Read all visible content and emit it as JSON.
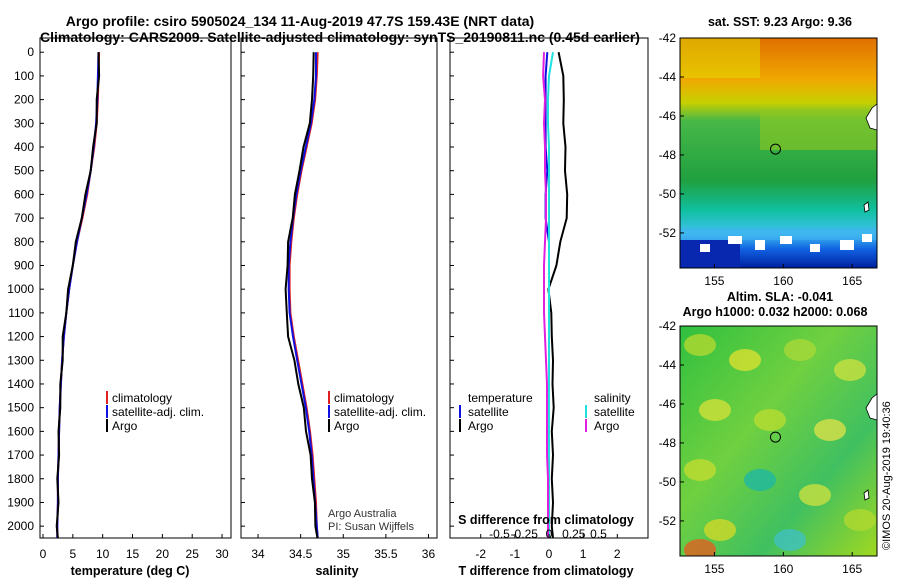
{
  "title": "Argo profile: csiro 5905024_134 11-Aug-2019 47.7S 159.43E (NRT data)",
  "subtitle": "Climatology: CARS2009. Satellite-adjusted climatology: synTS_20190811.nc (0.45d earlier)",
  "colors": {
    "climatology": "#e02020",
    "satellite": "#1010e0",
    "argo": "#000000",
    "s_satellite": "#20e0e0",
    "s_argo": "#e020e0"
  },
  "panels": {
    "temperature": {
      "xlabel": "temperature (deg C)",
      "legend": [
        "climatology",
        "satellite-adj. clim.",
        "Argo"
      ]
    },
    "salinity": {
      "xlabel": "salinity",
      "legend": [
        "climatology",
        "satellite-adj. clim.",
        "Argo"
      ]
    },
    "difference": {
      "xlabel": "T difference from climatology",
      "s_axis_label": "S difference from climatology",
      "legend_left": [
        "temperature",
        "satellite",
        "Argo"
      ],
      "legend_right": [
        "salinity",
        "satellite",
        "Argo"
      ]
    }
  },
  "credits": [
    "Argo Australia",
    "PI: Susan Wijffels"
  ],
  "maps": {
    "sst": {
      "title": "sat. SST: 9.23 Argo: 9.36",
      "xticks": [
        155,
        160,
        165
      ],
      "yticks": [
        -42,
        -44,
        -46,
        -48,
        -50,
        -52
      ],
      "xlim": [
        152.5,
        166.8
      ],
      "ylim": [
        -53.8,
        -42.0
      ],
      "profile_location": [
        159.43,
        -47.7
      ]
    },
    "sla": {
      "title_1": "Altim. SLA: -0.041",
      "title_2": "Argo h1000: 0.032 h2000: 0.068",
      "xticks": [
        155,
        160,
        165
      ],
      "yticks": [
        -42,
        -44,
        -46,
        -48,
        -50,
        -52
      ],
      "xlim": [
        152.5,
        166.8
      ],
      "ylim": [
        -53.8,
        -42.0
      ],
      "profile_location": [
        159.43,
        -47.7
      ]
    }
  },
  "imos_credit": "©IMOS 20-Aug-2019 19:40:36",
  "chart_data": [
    {
      "type": "line",
      "title": "",
      "xlabel": "temperature (deg C)",
      "ylabel": "",
      "xlim": [
        -0.5,
        31.5
      ],
      "ylim": [
        2050,
        -60
      ],
      "xticks": [
        0,
        5,
        10,
        15,
        20,
        25,
        30
      ],
      "yticks": [
        0,
        100,
        200,
        300,
        400,
        500,
        600,
        700,
        800,
        900,
        1000,
        1100,
        1200,
        1300,
        1400,
        1500,
        1600,
        1700,
        1800,
        1900,
        2000
      ],
      "depth": [
        0,
        100,
        200,
        300,
        400,
        500,
        600,
        700,
        800,
        900,
        1000,
        1100,
        1200,
        1300,
        1400,
        1500,
        1600,
        1700,
        1800,
        1900,
        2000,
        2050
      ],
      "series": [
        {
          "name": "climatology",
          "values": [
            9.4,
            9.3,
            9.2,
            9.0,
            8.6,
            8.0,
            7.4,
            6.6,
            5.7,
            5.0,
            4.4,
            3.9,
            3.5,
            3.2,
            3.0,
            2.8,
            2.7,
            2.6,
            2.5,
            2.5,
            2.4,
            2.4
          ]
        },
        {
          "name": "satellite-adj. clim.",
          "values": [
            9.3,
            9.2,
            9.1,
            8.9,
            8.5,
            8.0,
            7.3,
            6.5,
            5.7,
            5.0,
            4.4,
            3.9,
            3.5,
            3.2,
            3.0,
            2.8,
            2.7,
            2.6,
            2.5,
            2.5,
            2.4,
            2.4
          ]
        },
        {
          "name": "Argo",
          "values": [
            9.4,
            9.3,
            9.1,
            8.9,
            8.5,
            7.9,
            7.2,
            6.4,
            5.6,
            4.9,
            4.3,
            3.8,
            3.4,
            3.2,
            3.0,
            2.8,
            2.7,
            2.6,
            2.5,
            2.5,
            2.4,
            2.4
          ]
        }
      ]
    },
    {
      "type": "line",
      "title": "",
      "xlabel": "salinity",
      "ylabel": "",
      "xlim": [
        33.8,
        36.1
      ],
      "ylim": [
        2050,
        -60
      ],
      "xticks": [
        34,
        34.5,
        35,
        35.5,
        36
      ],
      "xtick_labels": [
        "34",
        "34.5",
        "35",
        "35.5",
        "36"
      ],
      "depth": [
        0,
        100,
        200,
        300,
        400,
        500,
        600,
        700,
        800,
        900,
        1000,
        1100,
        1200,
        1300,
        1400,
        1500,
        1600,
        1700,
        1800,
        1900,
        2000,
        2050
      ],
      "series": [
        {
          "name": "climatology",
          "values": [
            34.7,
            34.69,
            34.67,
            34.63,
            34.57,
            34.51,
            34.46,
            34.42,
            34.39,
            34.37,
            34.37,
            34.38,
            34.42,
            34.47,
            34.52,
            34.57,
            34.61,
            34.64,
            34.66,
            34.68,
            34.69,
            34.7
          ]
        },
        {
          "name": "satellite-adj. clim.",
          "values": [
            34.68,
            34.68,
            34.66,
            34.62,
            34.56,
            34.5,
            34.45,
            34.41,
            34.38,
            34.36,
            34.36,
            34.37,
            34.41,
            34.46,
            34.51,
            34.56,
            34.6,
            34.63,
            34.65,
            34.67,
            34.69,
            34.7
          ]
        },
        {
          "name": "Argo",
          "values": [
            34.66,
            34.64,
            34.64,
            34.6,
            34.54,
            34.48,
            34.44,
            34.4,
            34.36,
            34.34,
            34.33,
            34.33,
            34.36,
            34.42,
            34.48,
            34.53,
            34.57,
            34.61,
            34.64,
            34.66,
            34.68,
            34.69
          ]
        }
      ]
    },
    {
      "type": "line",
      "title": "",
      "xlabel": "T difference from climatology",
      "ylabel": "",
      "xlim": [
        -2.9,
        2.9
      ],
      "ylim": [
        2050,
        -60
      ],
      "xticks": [
        -2,
        -1,
        0,
        1,
        2
      ],
      "s_axis": {
        "label": "S difference from climatology",
        "ticks": [
          -0.5,
          -0.25,
          0,
          0.25,
          0.5
        ],
        "tick_labels": [
          "-0.5",
          "-0.25",
          "0",
          "0.25",
          "0.5"
        ],
        "lim": [
          -1.0,
          1.0
        ]
      },
      "depth": [
        0,
        100,
        200,
        300,
        400,
        500,
        600,
        700,
        800,
        900,
        1000,
        1100,
        1200,
        1300,
        1400,
        1500,
        1600,
        1700,
        1800,
        1900,
        2000,
        2050
      ],
      "series": [
        {
          "name": "temperature satellite",
          "axis": "T",
          "values": [
            -0.05,
            -0.1,
            -0.1,
            -0.1,
            -0.1,
            -0.05,
            -0.1,
            -0.1,
            0.0,
            0.0,
            0.0,
            0.0,
            0.0,
            0.0,
            0.0,
            0.0,
            0.0,
            0.0,
            0.0,
            0.0,
            0.0,
            0.0
          ]
        },
        {
          "name": "temperature Argo",
          "axis": "T",
          "values": [
            0.3,
            0.4,
            0.45,
            0.4,
            0.5,
            0.45,
            0.55,
            0.5,
            0.35,
            0.2,
            0.0,
            0.05,
            0.1,
            0.1,
            0.12,
            0.12,
            0.1,
            0.1,
            0.1,
            0.1,
            0.1,
            0.1
          ]
        },
        {
          "name": "salinity satellite",
          "axis": "S",
          "values": [
            0.04,
            0.0,
            -0.01,
            -0.01,
            0.0,
            0.0,
            0.0,
            0.0,
            0.0,
            0.0,
            0.0,
            0.0,
            0.0,
            0.0,
            0.0,
            0.0,
            0.0,
            0.0,
            0.0,
            0.0,
            0.0,
            0.0
          ]
        },
        {
          "name": "salinity Argo",
          "axis": "S",
          "values": [
            -0.05,
            -0.06,
            -0.04,
            -0.05,
            -0.04,
            -0.04,
            -0.03,
            -0.03,
            -0.04,
            -0.05,
            -0.05,
            -0.05,
            -0.04,
            -0.03,
            -0.02,
            -0.02,
            -0.02,
            -0.02,
            -0.01,
            -0.01,
            -0.01,
            -0.01
          ]
        }
      ]
    }
  ]
}
